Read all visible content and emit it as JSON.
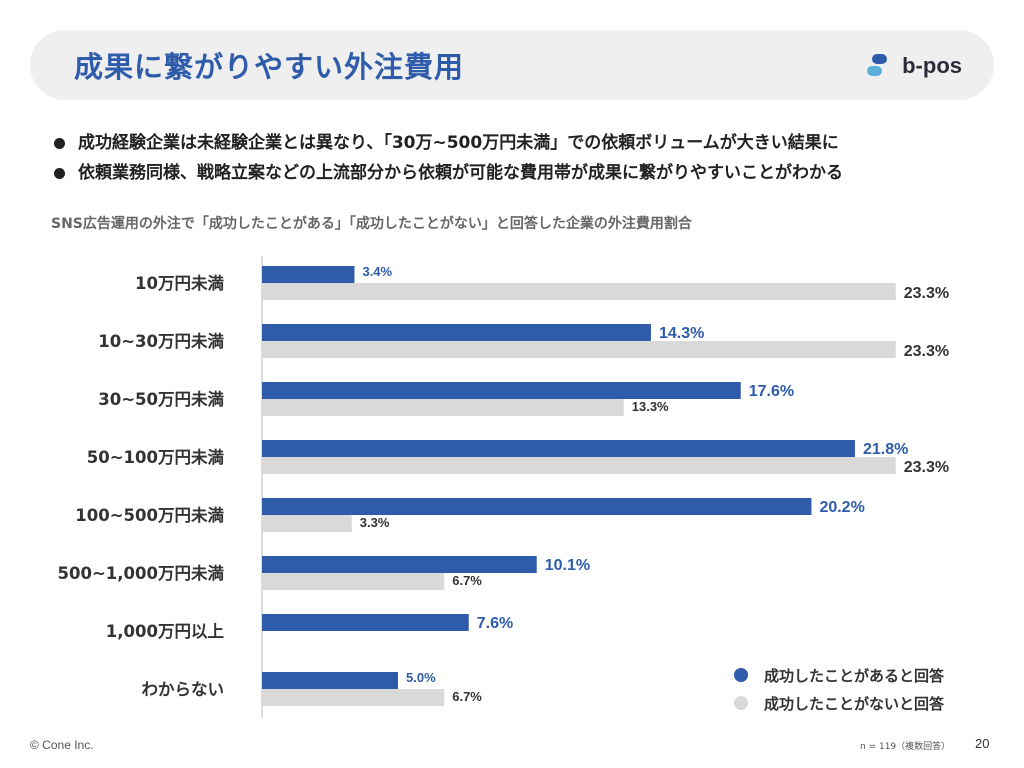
{
  "header": {
    "title": "成果に繋がりやすい外注費用",
    "brand": "b-pos"
  },
  "bullets": [
    "成功経験企業は未経験企業とは異なり、「30万~500万円未満」での依頼ボリュームが大きい結果に",
    "依頼業務同様、戦略立案などの上流部分から依頼が可能な費用帯が成果に繋がりやすいことがわかる"
  ],
  "colors": {
    "accent": "#2e5cab",
    "secondary": "#d9d9d9",
    "text": "#333333"
  },
  "chart_data": {
    "type": "bar",
    "orientation": "horizontal",
    "title": "SNS広告運用の外注で「成功したことがある」「成功したことがない」と回答した企業の外注費用割合",
    "categories": [
      "10万円未満",
      "10~30万円未満",
      "30~50万円未満",
      "50~100万円未満",
      "100~500万円未満",
      "500~1,000万円未満",
      "1,000万円以上",
      "わからない"
    ],
    "series": [
      {
        "name": "成功したことがあると回答",
        "values": [
          3.4,
          14.3,
          17.6,
          21.8,
          20.2,
          10.1,
          7.6,
          5.0
        ],
        "labels": [
          "3.4%",
          "14.3%",
          "17.6%",
          "21.8%",
          "20.2%",
          "10.1%",
          "7.6%",
          "5.0%"
        ],
        "color": "#2e5cab"
      },
      {
        "name": "成功したことがないと回答",
        "values": [
          23.3,
          23.3,
          13.3,
          23.3,
          3.3,
          6.7,
          null,
          6.7
        ],
        "labels": [
          "23.3%",
          "23.3%",
          "13.3%",
          "23.3%",
          "3.3%",
          "6.7%",
          "",
          "6.7%"
        ],
        "color": "#d9d9d9"
      }
    ],
    "xlim": [
      0,
      27
    ],
    "grid": false,
    "legend_position": "bottom-right",
    "note": "n = 119（複数回答）"
  },
  "footer": {
    "copyright": "© Cone Inc.",
    "sample_note": "n = 119（複数回答）",
    "page_number": "20"
  }
}
